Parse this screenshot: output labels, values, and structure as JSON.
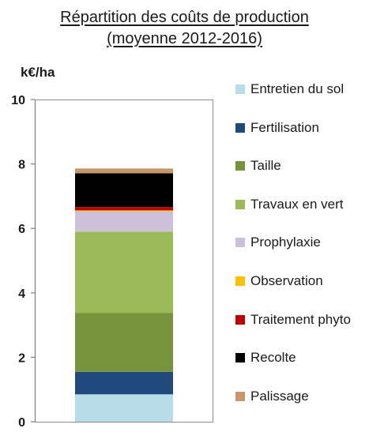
{
  "chart_data": {
    "type": "bar",
    "stacked": true,
    "title": "Répartition des coûts de production",
    "subtitle": "(moyenne 2012-2016)",
    "ylabel": "k€/ha",
    "ylim": [
      0,
      10
    ],
    "yticks": [
      "0",
      "2",
      "4",
      "6",
      "8",
      "10"
    ],
    "grid": false,
    "legend_position": "right",
    "series": [
      {
        "name": "Entretien du sol",
        "color": "#b7dde8",
        "value": 0.85
      },
      {
        "name": "Fertilisation",
        "color": "#1f497d",
        "value": 0.7
      },
      {
        "name": "Taille",
        "color": "#77933c",
        "value": 1.82
      },
      {
        "name": "Travaux en vert",
        "color": "#9bbb59",
        "value": 2.53
      },
      {
        "name": "Prophylaxie",
        "color": "#ccc0da",
        "value": 0.63
      },
      {
        "name": "Observation",
        "color": "#ffc000",
        "value": 0.03
      },
      {
        "name": "Traitement phyto",
        "color": "#c00000",
        "value": 0.1
      },
      {
        "name": "Recolte",
        "color": "#000000",
        "value": 1.05
      },
      {
        "name": "Palissage",
        "color": "#c8976c",
        "value": 0.15
      }
    ]
  }
}
